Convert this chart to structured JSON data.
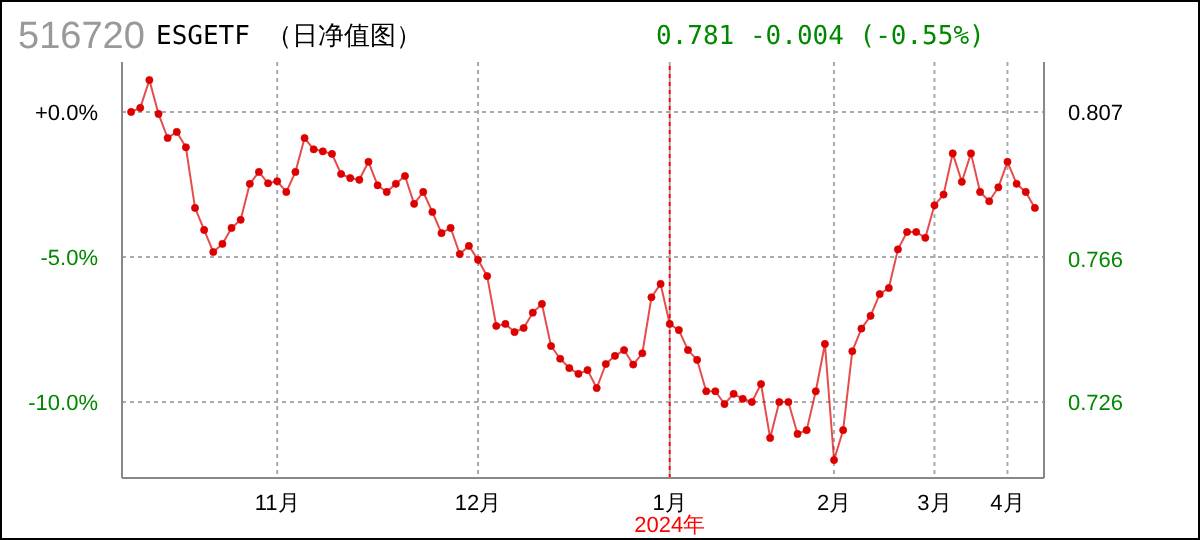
{
  "chart_data": {
    "type": "line",
    "title": "516720",
    "subtitle": "ESGETF （日净值图）",
    "annotations": [
      "0.781 -0.004 (-0.55%)"
    ],
    "categories": [
      null,
      null,
      null,
      null,
      null,
      null,
      null,
      null,
      null,
      null,
      null,
      null,
      null,
      null,
      null,
      null,
      "11月",
      null,
      null,
      null,
      null,
      null,
      null,
      null,
      null,
      null,
      null,
      null,
      null,
      null,
      null,
      null,
      null,
      null,
      null,
      null,
      null,
      null,
      "12月",
      null,
      null,
      null,
      null,
      null,
      null,
      null,
      null,
      null,
      null,
      null,
      null,
      null,
      null,
      null,
      null,
      null,
      null,
      null,
      null,
      "1月",
      null,
      null,
      null,
      null,
      null,
      null,
      null,
      null,
      null,
      null,
      null,
      null,
      null,
      null,
      null,
      null,
      null,
      "2月",
      null,
      null,
      null,
      null,
      null,
      null,
      null,
      null,
      null,
      null,
      "3月",
      null,
      null,
      null,
      null,
      null,
      null,
      null,
      "4月",
      null,
      null,
      null
    ],
    "series": [
      {
        "color": "#dd0000",
        "values": [
          0.0,
          0.14,
          1.1,
          -0.07,
          -0.9,
          -0.69,
          -1.22,
          -3.31,
          -4.07,
          -4.83,
          -4.55,
          -4.0,
          -3.72,
          -2.48,
          -2.07,
          -2.46,
          -2.39,
          -2.76,
          -2.07,
          -0.9,
          -1.29,
          -1.36,
          -1.45,
          -2.14,
          -2.28,
          -2.34,
          -1.72,
          -2.53,
          -2.76,
          -2.48,
          -2.21,
          -3.17,
          -2.76,
          -3.45,
          -4.18,
          -4.0,
          -4.9,
          -4.62,
          -5.1,
          -5.66,
          -7.38,
          -7.31,
          -7.59,
          -7.45,
          -6.92,
          -6.62,
          -8.07,
          -8.51,
          -8.83,
          -9.03,
          -8.9,
          -9.52,
          -8.69,
          -8.41,
          -8.21,
          -8.71,
          -8.32,
          -6.39,
          -5.93,
          -7.31,
          -7.52,
          -8.21,
          -8.55,
          -9.63,
          -9.63,
          -10.07,
          -9.72,
          -9.89,
          -10.0,
          -9.38,
          -11.24,
          -10.0,
          -10.0,
          -11.1,
          -10.97,
          -9.63,
          -8.0,
          -12.0,
          -10.97,
          -8.25,
          -7.47,
          -7.03,
          -6.28,
          -6.07,
          -4.74,
          -4.14,
          -4.14,
          -4.34,
          -3.22,
          -2.85,
          -1.43,
          -2.41,
          -1.43,
          -2.76,
          -3.08,
          -2.6,
          -1.72,
          -2.48,
          -2.76,
          -3.31
        ]
      }
    ],
    "ylim": [
      -12.62,
      1.72
    ],
    "yticks": [
      {
        "value": 0,
        "label": "+0.0%"
      },
      {
        "value": -5,
        "label": "-5.0%"
      },
      {
        "value": -10,
        "label": "-10.0%"
      }
    ],
    "y2lim": [
      0.7048,
      0.821
    ],
    "y2ticks": [
      0.807,
      0.766,
      0.726
    ],
    "ref_lines": [
      {
        "axis": "x",
        "value": "1月",
        "label": "2024年",
        "color": "#ff0000",
        "line_style": "dotted"
      }
    ],
    "grid": true,
    "marker": "circle",
    "line_style": "solid"
  }
}
